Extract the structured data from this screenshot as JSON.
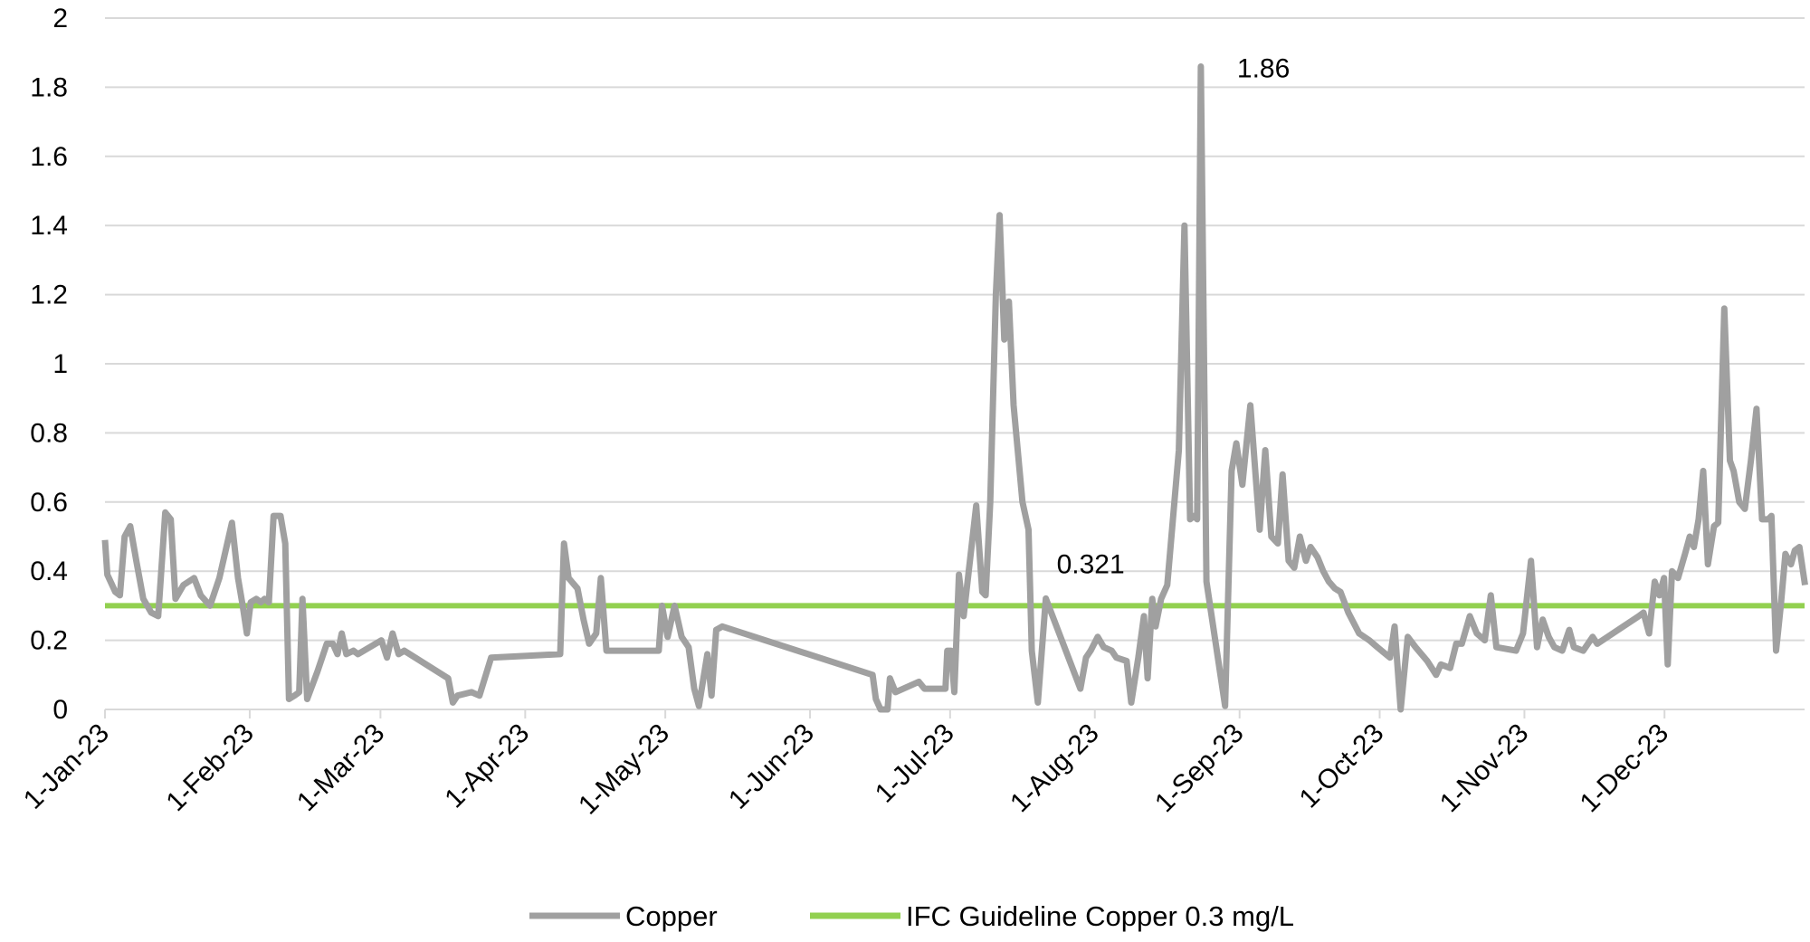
{
  "chart_data": {
    "type": "line",
    "title": "",
    "xlabel": "",
    "ylabel": "",
    "x_unit": "days since 1-Jan-23",
    "xlim": [
      0,
      364
    ],
    "ylim": [
      0,
      2
    ],
    "yticks": [
      "0",
      "0.2",
      "0.4",
      "0.6",
      "0.8",
      "1",
      "1.2",
      "1.4",
      "1.6",
      "1.8",
      "2"
    ],
    "ytick_values": [
      0,
      0.2,
      0.4,
      0.6,
      0.8,
      1,
      1.2,
      1.4,
      1.6,
      1.8,
      2
    ],
    "xticks": [
      {
        "label": "1-Jan-23",
        "day": 0
      },
      {
        "label": "1-Feb-23",
        "day": 31
      },
      {
        "label": "1-Mar-23",
        "day": 59
      },
      {
        "label": "1-Apr-23",
        "day": 90
      },
      {
        "label": "1-May-23",
        "day": 120
      },
      {
        "label": "1-Jun-23",
        "day": 151
      },
      {
        "label": "1-Jul-23",
        "day": 181
      },
      {
        "label": "1-Aug-23",
        "day": 212
      },
      {
        "label": "1-Sep-23",
        "day": 243
      },
      {
        "label": "1-Oct-23",
        "day": 273
      },
      {
        "label": "1-Nov-23",
        "day": 304
      },
      {
        "label": "1-Dec-23",
        "day": 334
      }
    ],
    "grid": true,
    "legend_position": "bottom",
    "series": [
      {
        "name": "Copper",
        "color": "#a0a0a0",
        "points": [
          [
            0,
            0.49
          ],
          [
            0.5,
            0.39
          ],
          [
            2.2,
            0.34
          ],
          [
            3.2,
            0.33
          ],
          [
            4.2,
            0.5
          ],
          [
            5.4,
            0.53
          ],
          [
            6.7,
            0.43
          ],
          [
            8.2,
            0.32
          ],
          [
            9.9,
            0.28
          ],
          [
            11.4,
            0.27
          ],
          [
            12.9,
            0.57
          ],
          [
            14.1,
            0.55
          ],
          [
            15.1,
            0.32
          ],
          [
            16.8,
            0.36
          ],
          [
            19.1,
            0.38
          ],
          [
            20.5,
            0.33
          ],
          [
            22.5,
            0.3
          ],
          [
            24.5,
            0.38
          ],
          [
            27.2,
            0.54
          ],
          [
            28.5,
            0.38
          ],
          [
            29.5,
            0.3
          ],
          [
            30.4,
            0.22
          ],
          [
            31.2,
            0.31
          ],
          [
            32.4,
            0.32
          ],
          [
            33.4,
            0.31
          ],
          [
            34.2,
            0.32
          ],
          [
            35.1,
            0.31
          ],
          [
            36.1,
            0.56
          ],
          [
            37.6,
            0.56
          ],
          [
            38.6,
            0.48
          ],
          [
            39.4,
            0.03
          ],
          [
            40.6,
            0.04
          ],
          [
            41.6,
            0.05
          ],
          [
            42.3,
            0.32
          ],
          [
            43.3,
            0.03
          ],
          [
            45.5,
            0.11
          ],
          [
            47.5,
            0.19
          ],
          [
            48.8,
            0.19
          ],
          [
            49.8,
            0.16
          ],
          [
            50.7,
            0.22
          ],
          [
            51.7,
            0.16
          ],
          [
            53.2,
            0.17
          ],
          [
            54.2,
            0.16
          ],
          [
            59.2,
            0.2
          ],
          [
            60.4,
            0.15
          ],
          [
            61.6,
            0.22
          ],
          [
            62.9,
            0.16
          ],
          [
            64.1,
            0.17
          ],
          [
            73.5,
            0.09
          ],
          [
            74.5,
            0.02
          ],
          [
            75.5,
            0.04
          ],
          [
            78.5,
            0.05
          ],
          [
            80.2,
            0.04
          ],
          [
            82.7,
            0.15
          ],
          [
            97.5,
            0.16
          ],
          [
            98.3,
            0.48
          ],
          [
            99.3,
            0.38
          ],
          [
            101.2,
            0.35
          ],
          [
            102.5,
            0.26
          ],
          [
            103.7,
            0.19
          ],
          [
            105.2,
            0.22
          ],
          [
            106.2,
            0.38
          ],
          [
            107.4,
            0.17
          ],
          [
            118.6,
            0.17
          ],
          [
            119.3,
            0.3
          ],
          [
            120.5,
            0.21
          ],
          [
            122,
            0.3
          ],
          [
            123.5,
            0.21
          ],
          [
            125,
            0.18
          ],
          [
            126.2,
            0.06
          ],
          [
            127.2,
            0.01
          ],
          [
            129,
            0.16
          ],
          [
            129.9,
            0.04
          ],
          [
            130.9,
            0.23
          ],
          [
            132.2,
            0.24
          ],
          [
            164.4,
            0.1
          ],
          [
            165.1,
            0.03
          ],
          [
            166.1,
            0
          ],
          [
            167.6,
            0
          ],
          [
            168.1,
            0.09
          ],
          [
            169.3,
            0.05
          ],
          [
            174.3,
            0.08
          ],
          [
            175.5,
            0.06
          ],
          [
            176.7,
            0.06
          ],
          [
            180,
            0.06
          ],
          [
            180.4,
            0.17
          ],
          [
            181.2,
            0.17
          ],
          [
            181.9,
            0.05
          ],
          [
            182.9,
            0.39
          ],
          [
            183.9,
            0.27
          ],
          [
            184.9,
            0.39
          ],
          [
            186.6,
            0.59
          ],
          [
            187.9,
            0.34
          ],
          [
            188.6,
            0.33
          ],
          [
            189.6,
            0.6
          ],
          [
            190.8,
            1.2
          ],
          [
            191.6,
            1.43
          ],
          [
            192.6,
            1.07
          ],
          [
            193.6,
            1.18
          ],
          [
            194.6,
            0.88
          ],
          [
            196.5,
            0.6
          ],
          [
            197.8,
            0.52
          ],
          [
            198.5,
            0.17
          ],
          [
            199.8,
            0.02
          ],
          [
            201.5,
            0.321
          ],
          [
            208.9,
            0.06
          ],
          [
            210.1,
            0.15
          ],
          [
            211.1,
            0.17
          ],
          [
            212.6,
            0.21
          ],
          [
            213.9,
            0.18
          ],
          [
            215.6,
            0.17
          ],
          [
            216.6,
            0.15
          ],
          [
            218.8,
            0.14
          ],
          [
            219.8,
            0.02
          ],
          [
            221.3,
            0.15
          ],
          [
            222.5,
            0.27
          ],
          [
            223.3,
            0.09
          ],
          [
            224.3,
            0.32
          ],
          [
            225,
            0.24
          ],
          [
            226.2,
            0.32
          ],
          [
            227.5,
            0.36
          ],
          [
            230,
            0.75
          ],
          [
            231.2,
            1.4
          ],
          [
            232.4,
            0.55
          ],
          [
            233.2,
            0.56
          ],
          [
            233.9,
            0.55
          ],
          [
            234.7,
            1.86
          ],
          [
            235.9,
            0.37
          ],
          [
            239.9,
            0.01
          ],
          [
            241.3,
            0.69
          ],
          [
            242.3,
            0.77
          ],
          [
            243.6,
            0.65
          ],
          [
            245.3,
            0.88
          ],
          [
            247.3,
            0.52
          ],
          [
            248.5,
            0.75
          ],
          [
            249.8,
            0.5
          ],
          [
            251.2,
            0.48
          ],
          [
            252.2,
            0.68
          ],
          [
            253.5,
            0.43
          ],
          [
            254.7,
            0.41
          ],
          [
            255.9,
            0.5
          ],
          [
            257.2,
            0.43
          ],
          [
            258.2,
            0.47
          ],
          [
            259.7,
            0.44
          ],
          [
            260.9,
            0.4
          ],
          [
            262.1,
            0.37
          ],
          [
            263.4,
            0.35
          ],
          [
            264.6,
            0.34
          ],
          [
            266.3,
            0.28
          ],
          [
            268.6,
            0.22
          ],
          [
            270.8,
            0.2
          ],
          [
            272.5,
            0.18
          ],
          [
            275.2,
            0.15
          ],
          [
            276.2,
            0.24
          ],
          [
            277.5,
            0
          ],
          [
            279,
            0.21
          ],
          [
            280.7,
            0.18
          ],
          [
            283.2,
            0.14
          ],
          [
            285.1,
            0.1
          ],
          [
            286.1,
            0.13
          ],
          [
            288.1,
            0.12
          ],
          [
            289.4,
            0.19
          ],
          [
            290.6,
            0.19
          ],
          [
            292.3,
            0.27
          ],
          [
            293.8,
            0.22
          ],
          [
            295.5,
            0.2
          ],
          [
            296.8,
            0.33
          ],
          [
            298,
            0.18
          ],
          [
            302.2,
            0.17
          ],
          [
            303.7,
            0.22
          ],
          [
            305.4,
            0.43
          ],
          [
            306.7,
            0.18
          ],
          [
            307.9,
            0.26
          ],
          [
            309.2,
            0.21
          ],
          [
            310.4,
            0.18
          ],
          [
            312.1,
            0.17
          ],
          [
            313.6,
            0.23
          ],
          [
            314.6,
            0.18
          ],
          [
            316.6,
            0.17
          ],
          [
            318.6,
            0.21
          ],
          [
            319.6,
            0.19
          ],
          [
            328.5,
            0.27
          ],
          [
            329.5,
            0.28
          ],
          [
            330.7,
            0.22
          ],
          [
            331.9,
            0.37
          ],
          [
            332.9,
            0.33
          ],
          [
            333.9,
            0.38
          ],
          [
            334.7,
            0.13
          ],
          [
            335.6,
            0.4
          ],
          [
            336.9,
            0.38
          ],
          [
            338.4,
            0.45
          ],
          [
            339.4,
            0.5
          ],
          [
            340.3,
            0.47
          ],
          [
            341.3,
            0.55
          ],
          [
            342.3,
            0.69
          ],
          [
            343.3,
            0.42
          ],
          [
            344.6,
            0.53
          ],
          [
            345.5,
            0.54
          ],
          [
            346.8,
            1.16
          ],
          [
            348,
            0.72
          ],
          [
            348.8,
            0.69
          ],
          [
            350,
            0.6
          ],
          [
            351.2,
            0.58
          ],
          [
            352.5,
            0.72
          ],
          [
            353.7,
            0.87
          ],
          [
            354.9,
            0.55
          ],
          [
            356.2,
            0.55
          ],
          [
            356.9,
            0.56
          ],
          [
            357.9,
            0.17
          ],
          [
            358.9,
            0.3
          ],
          [
            359.9,
            0.45
          ],
          [
            361.1,
            0.42
          ],
          [
            361.9,
            0.46
          ],
          [
            362.9,
            0.47
          ],
          [
            364.1,
            0.36
          ]
        ]
      },
      {
        "name": "IFC Guideline Copper 0.3 mg/L",
        "color": "#92d050",
        "points": [
          [
            0,
            0.3
          ],
          [
            364,
            0.3
          ]
        ]
      }
    ],
    "annotations": [
      {
        "text": "1.86",
        "day": 234.7,
        "value": 1.86
      },
      {
        "text": "0.321",
        "day": 201.5,
        "value": 0.321
      }
    ]
  }
}
